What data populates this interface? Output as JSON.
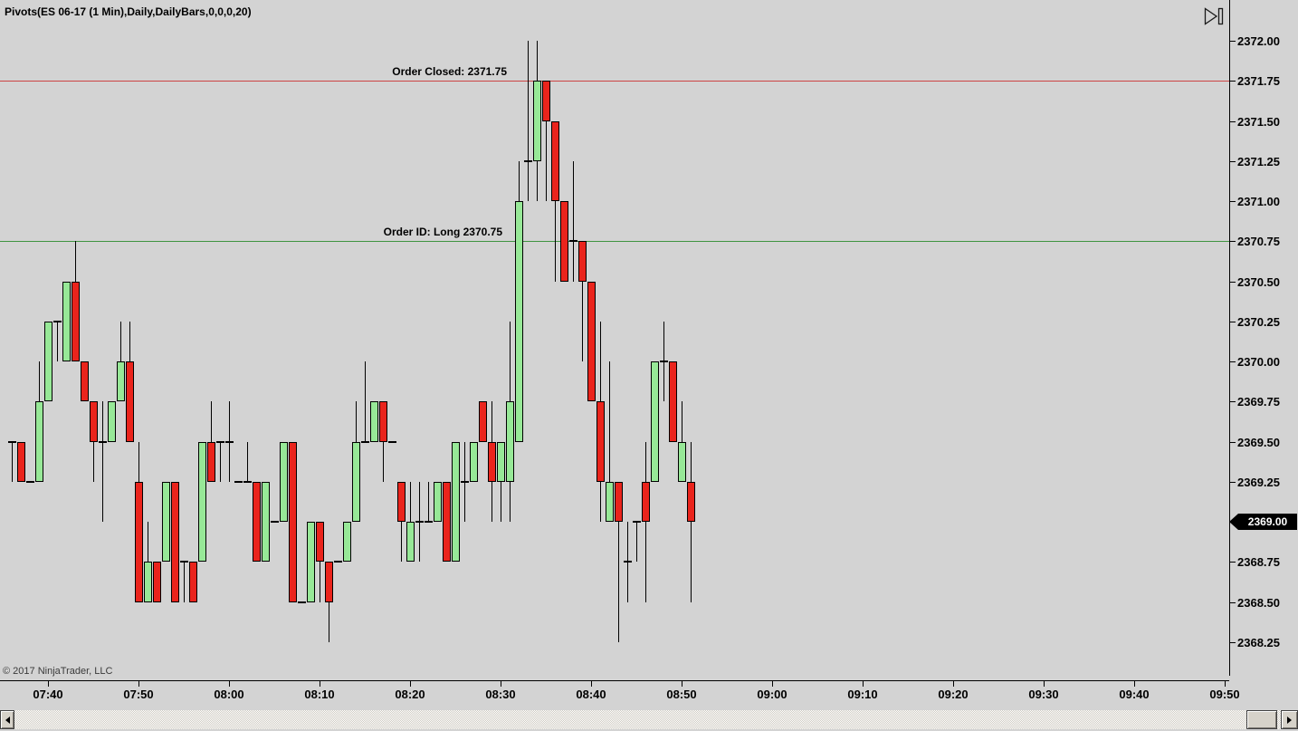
{
  "window": {
    "title": "Pivots(ES 06-17 (1 Min),Daily,DailyBars,0,0,0,20)"
  },
  "copyright": "© 2017 NinjaTrader, LLC",
  "colors": {
    "background": "#d3d3d3",
    "axis": "#000000",
    "up_candle": "#97e897",
    "down_candle": "#ea241c",
    "candle_outline": "#000000",
    "order_closed_line": "#cc4444",
    "order_entry_line": "#3f9440",
    "marker_bg": "#000000",
    "marker_fg": "#ffffff"
  },
  "order_lines": [
    {
      "label": "Order Closed: 2371.75",
      "price": 2371.75,
      "color_key": "order_closed_line"
    },
    {
      "label": "Order ID: Long 2370.75",
      "price": 2370.75,
      "color_key": "order_entry_line"
    }
  ],
  "last_price_marker": {
    "label": "2369.00",
    "price": 2369.0
  },
  "y_axis": {
    "labels": [
      "2372.00",
      "2371.75",
      "2371.50",
      "2371.25",
      "2371.00",
      "2370.75",
      "2370.50",
      "2370.25",
      "2370.00",
      "2369.75",
      "2369.50",
      "2369.25",
      "2369.00",
      "2368.75",
      "2368.50",
      "2368.25"
    ]
  },
  "x_axis": {
    "labels": [
      "07:40",
      "07:50",
      "08:00",
      "08:10",
      "08:20",
      "08:30",
      "08:40",
      "08:50",
      "09:00",
      "09:10",
      "09:20",
      "09:30",
      "09:40",
      "09:50"
    ]
  },
  "chart_data": {
    "type": "candlestick",
    "title": "Pivots(ES 06-17 (1 Min),Daily,DailyBars,0,0,0,20)",
    "instrument": "ES 06-17",
    "interval": "1 Min",
    "ylim": [
      2368.25,
      2372.0
    ],
    "price_step": 0.25,
    "columns": [
      "time",
      "open",
      "high",
      "low",
      "close"
    ],
    "bars": [
      [
        "07:36",
        2369.5,
        2369.5,
        2369.25,
        2369.5
      ],
      [
        "07:37",
        2369.5,
        2369.5,
        2369.25,
        2369.25
      ],
      [
        "07:38",
        2369.25,
        2369.25,
        2369.25,
        2369.25
      ],
      [
        "07:39",
        2369.25,
        2370.0,
        2369.25,
        2369.75
      ],
      [
        "07:40",
        2369.75,
        2370.25,
        2369.75,
        2370.25
      ],
      [
        "07:41",
        2370.25,
        2370.25,
        2370.0,
        2370.25
      ],
      [
        "07:42",
        2370.0,
        2370.5,
        2370.0,
        2370.5
      ],
      [
        "07:43",
        2370.5,
        2370.75,
        2370.0,
        2370.0
      ],
      [
        "07:44",
        2370.0,
        2370.0,
        2369.75,
        2369.75
      ],
      [
        "07:45",
        2369.75,
        2369.75,
        2369.25,
        2369.5
      ],
      [
        "07:46",
        2369.5,
        2369.75,
        2369.0,
        2369.5
      ],
      [
        "07:47",
        2369.5,
        2369.75,
        2369.5,
        2369.75
      ],
      [
        "07:48",
        2369.75,
        2370.25,
        2369.75,
        2370.0
      ],
      [
        "07:49",
        2370.0,
        2370.25,
        2369.5,
        2369.5
      ],
      [
        "07:50",
        2369.25,
        2369.5,
        2368.5,
        2368.5
      ],
      [
        "07:51",
        2368.5,
        2369.0,
        2368.5,
        2368.75
      ],
      [
        "07:52",
        2368.75,
        2368.75,
        2368.5,
        2368.5
      ],
      [
        "07:53",
        2368.75,
        2369.25,
        2368.75,
        2369.25
      ],
      [
        "07:54",
        2369.25,
        2369.25,
        2368.5,
        2368.5
      ],
      [
        "07:55",
        2368.75,
        2368.75,
        2368.5,
        2368.75
      ],
      [
        "07:56",
        2368.75,
        2368.75,
        2368.5,
        2368.5
      ],
      [
        "07:57",
        2368.75,
        2369.5,
        2368.75,
        2369.5
      ],
      [
        "07:58",
        2369.5,
        2369.75,
        2369.25,
        2369.25
      ],
      [
        "07:59",
        2369.5,
        2369.5,
        2369.25,
        2369.5
      ],
      [
        "08:00",
        2369.5,
        2369.75,
        2369.25,
        2369.5
      ],
      [
        "08:01",
        2369.25,
        2369.25,
        2369.25,
        2369.25
      ],
      [
        "08:02",
        2369.25,
        2369.5,
        2369.25,
        2369.25
      ],
      [
        "08:03",
        2369.25,
        2369.25,
        2368.75,
        2368.75
      ],
      [
        "08:04",
        2368.75,
        2369.25,
        2368.75,
        2369.25
      ],
      [
        "08:05",
        2369.0,
        2369.0,
        2369.0,
        2369.0
      ],
      [
        "08:06",
        2369.0,
        2369.5,
        2369.0,
        2369.5
      ],
      [
        "08:07",
        2369.5,
        2369.5,
        2368.5,
        2368.5
      ],
      [
        "08:08",
        2368.5,
        2368.5,
        2368.5,
        2368.5
      ],
      [
        "08:09",
        2368.5,
        2369.0,
        2368.5,
        2369.0
      ],
      [
        "08:10",
        2369.0,
        2369.0,
        2368.5,
        2368.75
      ],
      [
        "08:11",
        2368.75,
        2368.75,
        2368.25,
        2368.5
      ],
      [
        "08:12",
        2368.75,
        2368.75,
        2368.75,
        2368.75
      ],
      [
        "08:13",
        2368.75,
        2369.0,
        2368.75,
        2369.0
      ],
      [
        "08:14",
        2369.0,
        2369.75,
        2369.0,
        2369.5
      ],
      [
        "08:15",
        2369.5,
        2370.0,
        2369.5,
        2369.5
      ],
      [
        "08:16",
        2369.5,
        2369.75,
        2369.5,
        2369.75
      ],
      [
        "08:17",
        2369.75,
        2369.75,
        2369.25,
        2369.5
      ],
      [
        "08:18",
        2369.5,
        2369.5,
        2369.5,
        2369.5
      ],
      [
        "08:19",
        2369.25,
        2369.25,
        2368.75,
        2369.0
      ],
      [
        "08:20",
        2368.75,
        2369.25,
        2368.75,
        2369.0
      ],
      [
        "08:21",
        2369.0,
        2369.25,
        2368.75,
        2369.0
      ],
      [
        "08:22",
        2369.0,
        2369.25,
        2369.0,
        2369.0
      ],
      [
        "08:23",
        2369.0,
        2369.25,
        2369.0,
        2369.25
      ],
      [
        "08:24",
        2369.25,
        2369.25,
        2368.75,
        2368.75
      ],
      [
        "08:25",
        2368.75,
        2369.5,
        2368.75,
        2369.5
      ],
      [
        "08:26",
        2369.25,
        2369.5,
        2369.0,
        2369.25
      ],
      [
        "08:27",
        2369.25,
        2369.5,
        2369.25,
        2369.5
      ],
      [
        "08:28",
        2369.75,
        2369.75,
        2369.5,
        2369.5
      ],
      [
        "08:29",
        2369.5,
        2369.75,
        2369.0,
        2369.25
      ],
      [
        "08:30",
        2369.25,
        2369.5,
        2369.0,
        2369.5
      ],
      [
        "08:31",
        2369.25,
        2370.25,
        2369.0,
        2369.75
      ],
      [
        "08:32",
        2369.5,
        2371.25,
        2369.5,
        2371.0
      ],
      [
        "08:33",
        2371.25,
        2372.0,
        2371.0,
        2371.25
      ],
      [
        "08:34",
        2371.25,
        2372.0,
        2371.0,
        2371.75
      ],
      [
        "08:35",
        2371.75,
        2371.75,
        2371.0,
        2371.5
      ],
      [
        "08:36",
        2371.5,
        2371.5,
        2370.5,
        2371.0
      ],
      [
        "08:37",
        2371.0,
        2371.0,
        2370.5,
        2370.5
      ],
      [
        "08:38",
        2370.75,
        2371.25,
        2370.5,
        2370.75
      ],
      [
        "08:39",
        2370.75,
        2370.75,
        2370.0,
        2370.5
      ],
      [
        "08:40",
        2370.5,
        2370.5,
        2369.75,
        2369.75
      ],
      [
        "08:41",
        2369.75,
        2370.25,
        2369.0,
        2369.25
      ],
      [
        "08:42",
        2369.0,
        2370.0,
        2369.0,
        2369.25
      ],
      [
        "08:43",
        2369.25,
        2369.25,
        2368.25,
        2369.0
      ],
      [
        "08:44",
        2368.75,
        2369.0,
        2368.5,
        2368.75
      ],
      [
        "08:45",
        2369.0,
        2369.0,
        2368.75,
        2369.0
      ],
      [
        "08:46",
        2369.25,
        2369.5,
        2368.5,
        2369.0
      ],
      [
        "08:47",
        2369.25,
        2370.0,
        2369.25,
        2370.0
      ],
      [
        "08:48",
        2370.0,
        2370.25,
        2369.75,
        2370.0
      ],
      [
        "08:49",
        2370.0,
        2370.0,
        2369.5,
        2369.5
      ],
      [
        "08:50",
        2369.25,
        2369.75,
        2369.25,
        2369.5
      ],
      [
        "08:51",
        2369.25,
        2369.5,
        2368.5,
        2369.0
      ]
    ]
  },
  "scrollbar": {
    "orientation": "horizontal",
    "thumb_position": "right"
  }
}
